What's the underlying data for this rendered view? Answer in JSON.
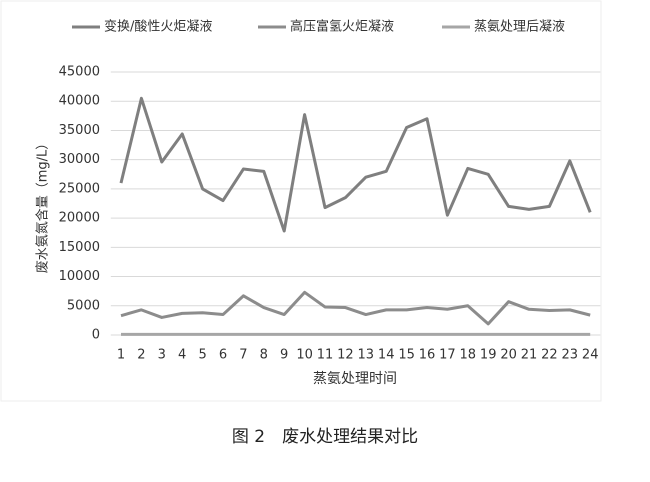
{
  "chart_data": {
    "type": "line",
    "x_label": "蒸氨处理时间",
    "y_label": "废水氨氮含量（mg/L）",
    "categories": [
      "1",
      "2",
      "3",
      "4",
      "5",
      "6",
      "7",
      "8",
      "9",
      "10",
      "11",
      "12",
      "13",
      "14",
      "15",
      "16",
      "17",
      "18",
      "19",
      "20",
      "21",
      "22",
      "23",
      "24"
    ],
    "series": [
      {
        "name": "变换/酸性火炬凝液",
        "color": "#7f7f7f",
        "values": [
          26000,
          40500,
          29600,
          34400,
          25000,
          23000,
          28400,
          28000,
          17800,
          37700,
          21800,
          23500,
          27000,
          28000,
          35500,
          37000,
          20500,
          28500,
          27500,
          22000,
          21500,
          22000,
          29800,
          21000
        ]
      },
      {
        "name": "高压富氢火炬凝液",
        "color": "#8c8c8c",
        "values": [
          3300,
          4300,
          3000,
          3700,
          3800,
          3500,
          6700,
          4700,
          3500,
          7300,
          4800,
          4700,
          3500,
          4300,
          4300,
          4700,
          4400,
          5000,
          1900,
          5700,
          4400,
          4200,
          4300,
          3400
        ]
      },
      {
        "name": "蒸氨处理后凝液",
        "color": "#a6a6a6",
        "values": [
          100,
          100,
          100,
          100,
          100,
          100,
          100,
          100,
          100,
          100,
          100,
          100,
          100,
          100,
          100,
          100,
          100,
          100,
          100,
          100,
          100,
          100,
          100,
          100
        ]
      }
    ],
    "ylim": [
      0,
      45000
    ],
    "yticks": [
      0,
      5000,
      10000,
      15000,
      20000,
      25000,
      30000,
      35000,
      40000,
      45000
    ],
    "grid": true
  },
  "caption": "图 2　废水处理结果对比"
}
